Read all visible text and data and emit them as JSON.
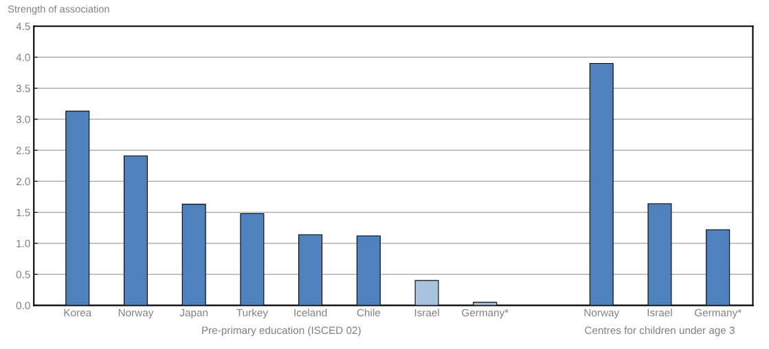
{
  "chart_data": {
    "type": "bar",
    "ylabel": "Strength of association",
    "categories": [
      "Korea",
      "Norway",
      "Japan",
      "Turkey",
      "Iceland",
      "Chile",
      "Israel",
      "Germany*",
      null,
      "Norway",
      "Israel",
      "Germany*"
    ],
    "values": [
      3.13,
      2.41,
      1.63,
      1.48,
      1.14,
      1.12,
      0.4,
      0.05,
      null,
      3.9,
      1.64,
      1.22
    ],
    "colors": [
      "#4f81bd",
      "#4f81bd",
      "#4f81bd",
      "#4f81bd",
      "#4f81bd",
      "#4f81bd",
      "#a9c2e0",
      "#a9c2e0",
      null,
      "#4f81bd",
      "#4f81bd",
      "#4f81bd"
    ],
    "ylim": [
      0,
      4.5
    ],
    "yticks": [
      {
        "value": 0,
        "label": "0.0"
      },
      {
        "value": 0.5,
        "label": "0.5"
      },
      {
        "value": 1,
        "label": "1.0"
      },
      {
        "value": 1.5,
        "label": "1.5"
      },
      {
        "value": 2,
        "label": "2.0"
      },
      {
        "value": 2.5,
        "label": "2.5"
      },
      {
        "value": 3,
        "label": "3.0"
      },
      {
        "value": 3.5,
        "label": "3.5"
      },
      {
        "value": 4,
        "label": "4.0"
      },
      {
        "value": 4.5,
        "label": "4.5"
      }
    ],
    "annotations": [
      "Pre-primary education (ISCED 02)",
      "Centres for children under age 3"
    ],
    "grid": "y",
    "legend": false
  }
}
